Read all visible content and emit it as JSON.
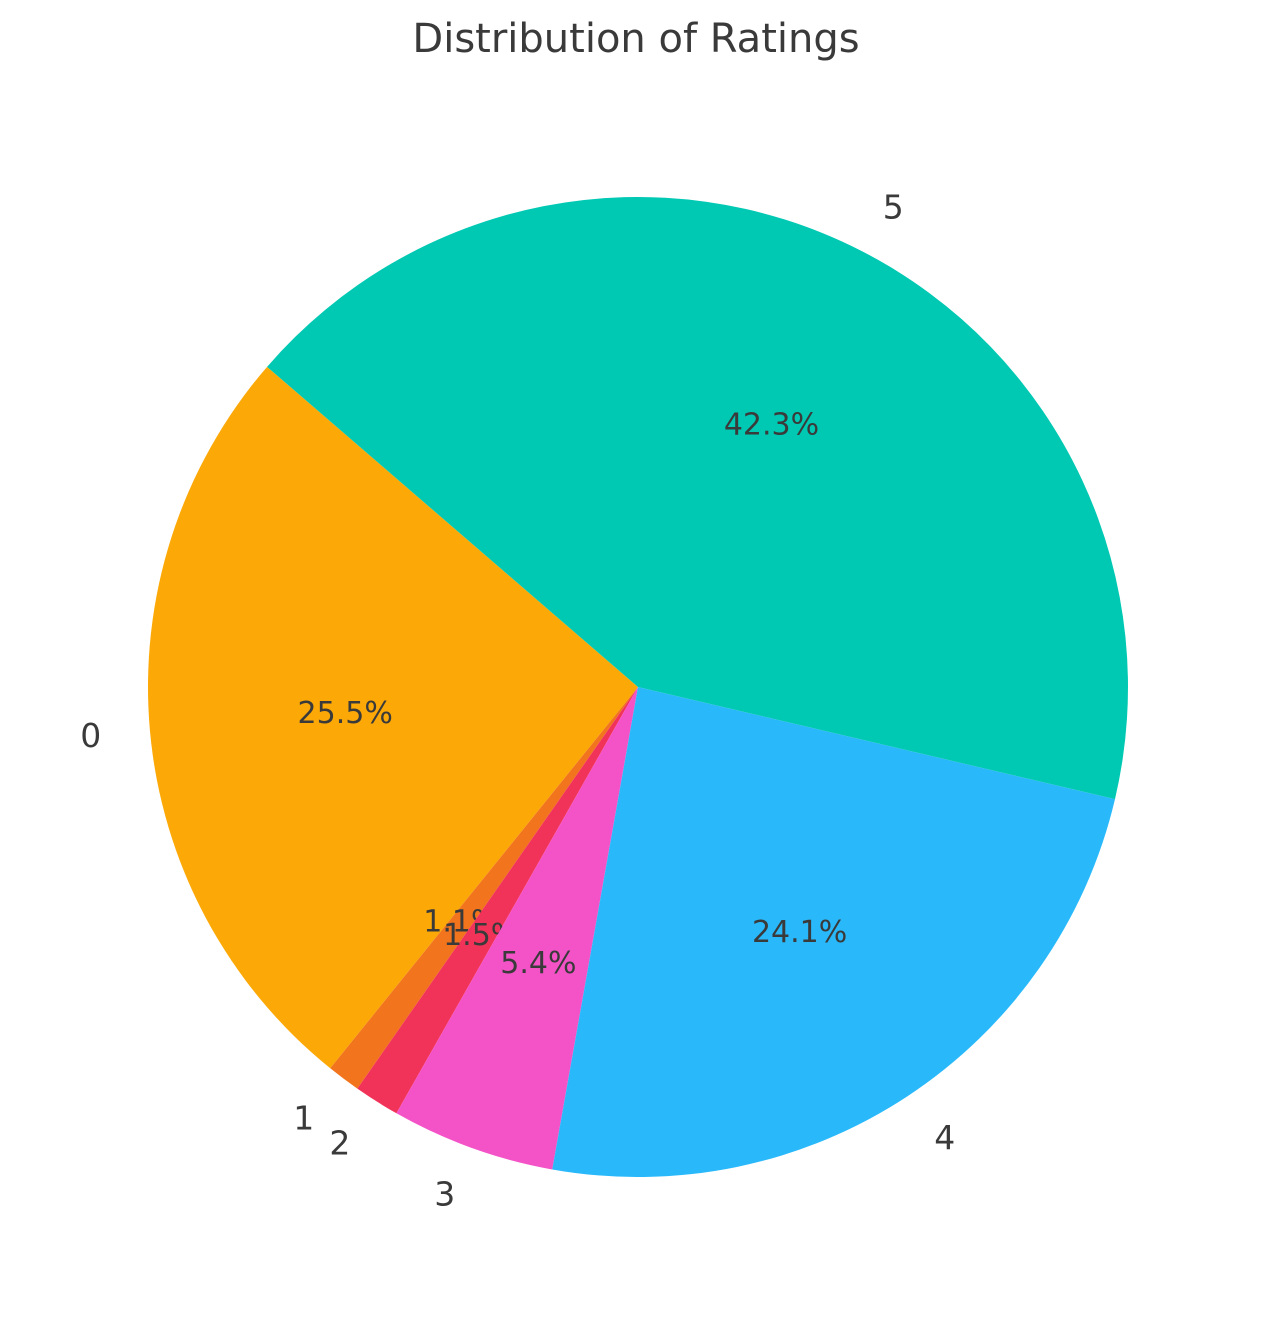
{
  "chart_data": {
    "type": "pie",
    "title": "Distribution of Ratings",
    "labels": [
      "0",
      "1",
      "2",
      "3",
      "4",
      "5"
    ],
    "values": [
      25.5,
      1.1,
      1.5,
      5.4,
      24.1,
      42.3
    ],
    "pct_labels": [
      "25.5%",
      "1.1%",
      "1.5%",
      "5.4%",
      "24.1%",
      "42.3%"
    ],
    "colors": [
      "#FCA908",
      "#F2741C",
      "#F23359",
      "#F453C8",
      "#29B9FB",
      "#00C9B3"
    ],
    "text_color": "#3a3a3a",
    "background_color": "#ffffff",
    "start_angle": 139.2,
    "direction": "counterclockwise",
    "label_distance": 1.1,
    "pct_distance": 0.6,
    "legend": "none",
    "grid": "off"
  }
}
